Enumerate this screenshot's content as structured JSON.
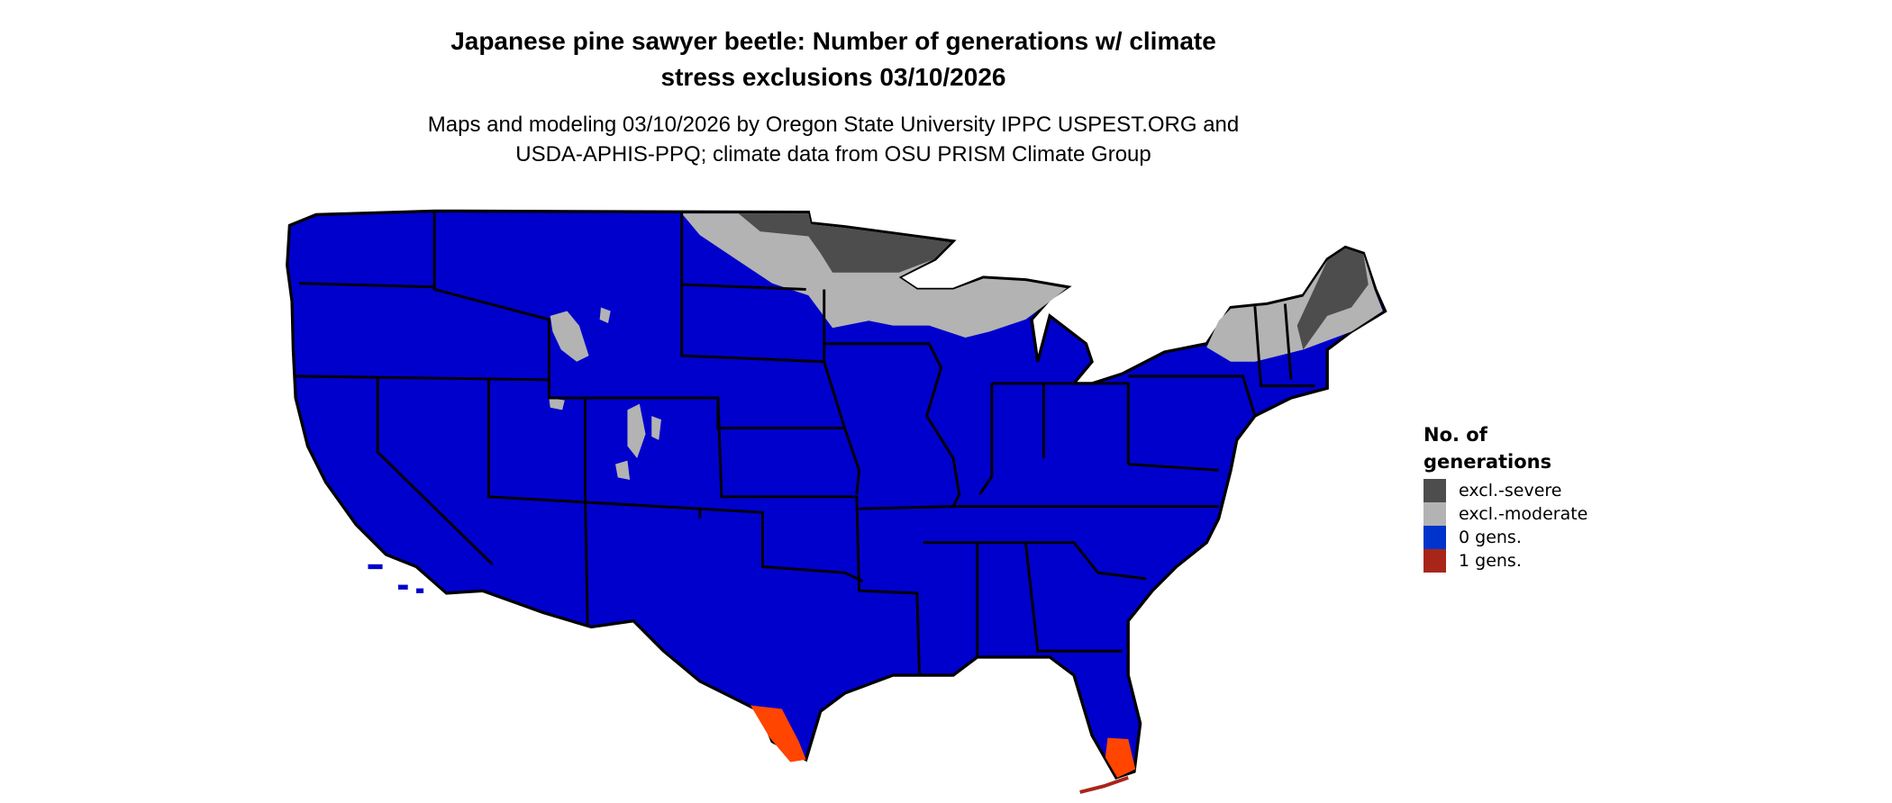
{
  "title_line1": "Japanese pine sawyer beetle: Number of generations w/ climate",
  "title_line2": "stress exclusions 03/10/2026",
  "subtitle_line1": "Maps and modeling 03/10/2026 by Oregon State University IPPC USPEST.ORG and",
  "subtitle_line2": "USDA-APHIS-PPQ; climate data from OSU PRISM Climate Group",
  "legend": {
    "title_line1": "No. of",
    "title_line2": "generations",
    "items": [
      {
        "label": "excl.-severe",
        "color": "#4d4d4d"
      },
      {
        "label": "excl.-moderate",
        "color": "#b3b3b3"
      },
      {
        "label": "0 gens.",
        "color": "#0033cc"
      },
      {
        "label": "1 gens.",
        "color": "#a8251a"
      }
    ]
  },
  "map_colors": {
    "zero_gens": "#0000cc",
    "one_gen": "#ff4500",
    "excl_moderate": "#b3b3b3",
    "excl_severe": "#4d4d4d",
    "state_borders": "#000000"
  },
  "chart_data": {
    "type": "map",
    "region": "Contiguous United States",
    "categories": [
      "excl.-severe",
      "excl.-moderate",
      "0 gens.",
      "1 gens."
    ],
    "dominant_category": "0 gens.",
    "notes_by_category": {
      "excl.-severe": [
        "northern Minnesota",
        "northern Maine",
        "northern New Hampshire/Vermont"
      ],
      "excl.-moderate": [
        "North Dakota",
        "northern Minnesota",
        "Wisconsin",
        "Michigan Upper Peninsula",
        "northern New York",
        "Vermont",
        "New Hampshire",
        "Rocky Mountain highlands"
      ],
      "1 gens.": [
        "south Texas",
        "south Florida"
      ]
    }
  }
}
